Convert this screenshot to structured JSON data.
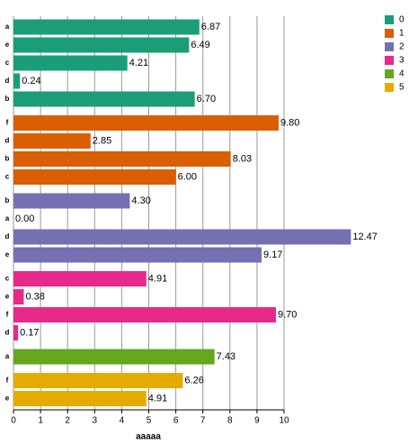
{
  "chart_data": {
    "type": "bar",
    "orientation": "horizontal",
    "x_label": "aaaaa",
    "xlim": [
      0,
      10
    ],
    "xticks": [
      0,
      1,
      2,
      3,
      4,
      5,
      6,
      7,
      8,
      9,
      10
    ],
    "grid": true,
    "legend": "upper right",
    "groups": [
      {
        "name": "0",
        "color": "#1b9e77",
        "categories": [
          "a",
          "e",
          "c",
          "d",
          "b"
        ],
        "values": [
          6.87,
          6.49,
          4.21,
          0.24,
          6.7
        ],
        "value_labels": [
          "6.87",
          "6.49",
          "4.21",
          "0.24",
          "6.70"
        ]
      },
      {
        "name": "1",
        "color": "#d95f02",
        "categories": [
          "f",
          "d",
          "b",
          "c"
        ],
        "values": [
          9.8,
          2.85,
          8.03,
          6.0
        ],
        "value_labels": [
          "9.80",
          "2.85",
          "8.03",
          "6.00"
        ]
      },
      {
        "name": "2",
        "color": "#7570b3",
        "categories": [
          "b",
          "a",
          "d",
          "e"
        ],
        "values": [
          4.3,
          0.0,
          12.47,
          9.17
        ],
        "value_labels": [
          "4.30",
          "0.00",
          "12.47",
          "9.17"
        ]
      },
      {
        "name": "3",
        "color": "#e7298a",
        "categories": [
          "c",
          "e",
          "f",
          "d"
        ],
        "values": [
          4.91,
          0.38,
          9.7,
          0.17
        ],
        "value_labels": [
          "4.91",
          "0.38",
          "9.70",
          "0.17"
        ]
      },
      {
        "name": "4",
        "color": "#66a61e",
        "categories": [
          "a"
        ],
        "values": [
          7.43
        ],
        "value_labels": [
          "7.43"
        ]
      },
      {
        "name": "5",
        "color": "#e6ab02",
        "categories": [
          "f",
          "e"
        ],
        "values": [
          6.26,
          4.91
        ],
        "value_labels": [
          "6.26",
          "4.91"
        ]
      }
    ]
  }
}
